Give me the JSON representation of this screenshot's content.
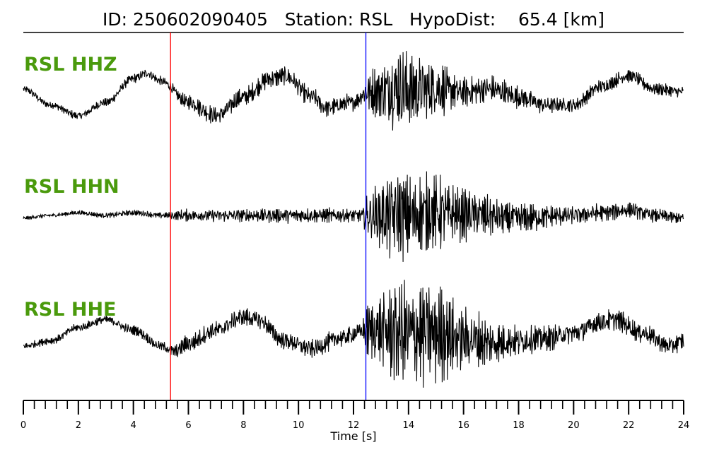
{
  "chart_data": {
    "type": "line",
    "title": "ID: 250602090405   Station: RSL   HypoDist:    65.4 [km]",
    "xlabel": "Time [s]",
    "xlim": [
      0,
      24
    ],
    "x_ticks": [
      "0",
      "2",
      "4",
      "6",
      "8",
      "10",
      "12",
      "14",
      "16",
      "18",
      "20",
      "22",
      "24"
    ],
    "minor_tick_step": 0.4,
    "grid": false,
    "label_color": "#4a9a0c",
    "trace_color": "#000000",
    "picks": [
      {
        "time": 5.35,
        "color": "#ff0000"
      },
      {
        "time": 12.45,
        "color": "#0000ff"
      }
    ],
    "series": [
      {
        "name": "RSL HHZ",
        "noise": [
          [
            0,
            0.06
          ],
          [
            5,
            0.08
          ],
          [
            6.5,
            0.15
          ],
          [
            9,
            0.16
          ],
          [
            12.3,
            0.14
          ],
          [
            12.5,
            0.35
          ],
          [
            13.8,
            0.75
          ],
          [
            14.8,
            0.5
          ],
          [
            16,
            0.25
          ],
          [
            20,
            0.12
          ],
          [
            24,
            0.1
          ]
        ],
        "envelope": [
          [
            0,
            0.05
          ],
          [
            1,
            -0.25
          ],
          [
            2,
            -0.45
          ],
          [
            3,
            -0.2
          ],
          [
            4,
            0.25
          ],
          [
            4.5,
            0.35
          ],
          [
            5,
            0.2
          ],
          [
            6,
            -0.2
          ],
          [
            7,
            -0.45
          ],
          [
            8,
            -0.1
          ],
          [
            9,
            0.25
          ],
          [
            9.5,
            0.3
          ],
          [
            10.5,
            -0.1
          ],
          [
            11,
            -0.3
          ],
          [
            12,
            -0.2
          ],
          [
            12.5,
            0
          ],
          [
            13.5,
            0.05
          ],
          [
            15,
            0.05
          ],
          [
            16,
            0
          ],
          [
            17,
            0.05
          ],
          [
            18,
            -0.1
          ],
          [
            19,
            -0.25
          ],
          [
            20,
            -0.25
          ],
          [
            21,
            0.1
          ],
          [
            22,
            0.3
          ],
          [
            23,
            0.05
          ],
          [
            24,
            0
          ]
        ]
      },
      {
        "name": "RSL HHN",
        "noise": [
          [
            0,
            0.03
          ],
          [
            5,
            0.05
          ],
          [
            6,
            0.1
          ],
          [
            10,
            0.12
          ],
          [
            12.3,
            0.12
          ],
          [
            12.5,
            0.4
          ],
          [
            13.5,
            0.7
          ],
          [
            15,
            0.6
          ],
          [
            16,
            0.4
          ],
          [
            18,
            0.25
          ],
          [
            20,
            0.15
          ],
          [
            24,
            0.1
          ]
        ],
        "envelope": [
          [
            0,
            -0.05
          ],
          [
            1,
            0
          ],
          [
            2,
            0.05
          ],
          [
            3,
            0
          ],
          [
            4,
            0.05
          ],
          [
            5,
            0
          ],
          [
            6,
            0
          ],
          [
            8,
            0
          ],
          [
            10,
            0
          ],
          [
            12,
            0
          ],
          [
            13,
            0
          ],
          [
            14,
            0
          ],
          [
            15,
            0.05
          ],
          [
            16,
            0.02
          ],
          [
            18,
            -0.05
          ],
          [
            20,
            0
          ],
          [
            21,
            0.05
          ],
          [
            22,
            0.1
          ],
          [
            23,
            0
          ],
          [
            24,
            -0.05
          ]
        ]
      },
      {
        "name": "RSL HHE",
        "noise": [
          [
            0,
            0.06
          ],
          [
            5,
            0.08
          ],
          [
            6,
            0.15
          ],
          [
            10,
            0.15
          ],
          [
            12.3,
            0.15
          ],
          [
            12.5,
            0.45
          ],
          [
            13.8,
            0.9
          ],
          [
            15,
            0.8
          ],
          [
            16,
            0.5
          ],
          [
            18,
            0.25
          ],
          [
            20,
            0.18
          ],
          [
            24,
            0.15
          ]
        ],
        "envelope": [
          [
            0,
            -0.2
          ],
          [
            1,
            -0.1
          ],
          [
            2,
            0.15
          ],
          [
            3,
            0.3
          ],
          [
            4,
            0.1
          ],
          [
            5,
            -0.2
          ],
          [
            5.5,
            -0.3
          ],
          [
            6,
            -0.15
          ],
          [
            7,
            0.1
          ],
          [
            8,
            0.35
          ],
          [
            8.5,
            0.3
          ],
          [
            9.5,
            -0.1
          ],
          [
            10.5,
            -0.25
          ],
          [
            11.5,
            -0.05
          ],
          [
            12.5,
            0.1
          ],
          [
            13.5,
            0.05
          ],
          [
            15,
            0.05
          ],
          [
            16,
            -0.05
          ],
          [
            17,
            -0.15
          ],
          [
            18,
            -0.1
          ],
          [
            19,
            -0.05
          ],
          [
            20,
            0.05
          ],
          [
            21,
            0.25
          ],
          [
            21.5,
            0.3
          ],
          [
            22.5,
            0.05
          ],
          [
            23.5,
            -0.2
          ],
          [
            24,
            -0.1
          ]
        ]
      }
    ]
  }
}
